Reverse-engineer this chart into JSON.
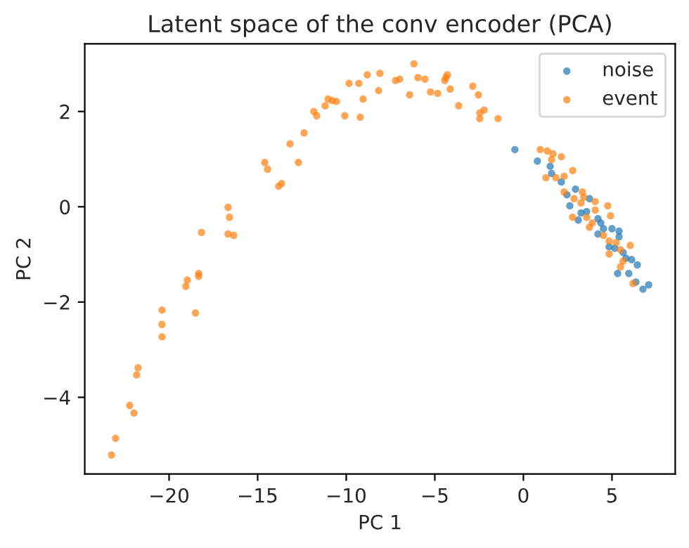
{
  "chart_data": {
    "type": "scatter",
    "title": "Latent space of the conv encoder (PCA)",
    "xlabel": "PC 1",
    "ylabel": "PC 2",
    "xlim": [
      -24.76,
      8.57
    ],
    "ylim": [
      -5.61,
      3.42
    ],
    "xticks": [
      {
        "value": -20,
        "label": "−20"
      },
      {
        "value": -15,
        "label": "−15"
      },
      {
        "value": -10,
        "label": "−10"
      },
      {
        "value": -5,
        "label": "−5"
      },
      0,
      5
    ],
    "yticks": [
      {
        "value": -4,
        "label": "−4"
      },
      {
        "value": -2,
        "label": "−2"
      },
      0,
      2
    ],
    "legend": "top right",
    "marker": "circle",
    "grid": false,
    "series": [
      {
        "name": "noise",
        "color": "#1f77b4",
        "x": [
          -0.48,
          0.79,
          1.51,
          1.59,
          2.14,
          2.94,
          2.62,
          3.1,
          3.73,
          3.25,
          3.57,
          4.21,
          4.21,
          4.52,
          5.0,
          5.4,
          5.4,
          4.84,
          5.79,
          6.11,
          6.43,
          5.32,
          5.95,
          6.35,
          6.75,
          7.07,
          3.97,
          2.46,
          4.37,
          5.16,
          5.63
        ],
        "values": [
          1.2,
          0.96,
          0.85,
          0.7,
          0.52,
          0.37,
          0.02,
          -0.28,
          0.17,
          -0.13,
          -0.1,
          -0.25,
          -0.57,
          -0.46,
          -0.46,
          -0.51,
          -0.63,
          -0.84,
          -1.08,
          -1.11,
          -1.22,
          -1.4,
          -1.4,
          -1.58,
          -1.73,
          -1.64,
          null,
          0.25,
          -0.34,
          -0.87,
          -0.96
        ]
      },
      {
        "name": "event",
        "color": "#ff7f0e",
        "x": [
          -18.17,
          -16.67,
          -16.35,
          -18.33,
          -18.33,
          -18.97,
          -19.05,
          -18.51,
          -20.4,
          -20.4,
          -20.4,
          -21.75,
          -21.83,
          -22.22,
          -21.98,
          -23.02,
          -23.25,
          -16.67,
          -16.59,
          -14.6,
          -14.44,
          -13.81,
          -13.65,
          -13.17,
          -12.7,
          -12.38,
          -11.83,
          -11.67,
          -11.19,
          -11.03,
          -10.79,
          -10.56,
          -10.08,
          -9.84,
          -9.29,
          -9.21,
          -9.05,
          -8.81,
          -8.17,
          -8.1,
          -7.22,
          -6.98,
          -6.42,
          -6.18,
          -5.95,
          -5.56,
          -5.24,
          -4.84,
          -4.44,
          -4.37,
          -4.29,
          -4.13,
          -3.65,
          -2.86,
          -2.54,
          -2.22,
          -2.46,
          -2.46,
          -1.43,
          0.95,
          1.35,
          1.67,
          1.59,
          2.14,
          1.27,
          1.83,
          2.3,
          2.78,
          2.3,
          2.86,
          3.33,
          3.41,
          3.25,
          4.05,
          4.76,
          2.78,
          3.57,
          3.89,
          4.92,
          4.52,
          4.84,
          5.24,
          6.03,
          5.48,
          4.84,
          5.63,
          5.48,
          6.19,
          4.05,
          3.73
        ],
        "values": [
          -0.54,
          -0.57,
          -0.6,
          -1.4,
          -1.46,
          -1.54,
          -1.67,
          -2.23,
          -2.17,
          -2.47,
          -2.73,
          -3.38,
          -3.53,
          -4.17,
          -4.33,
          -4.86,
          -5.21,
          -0.01,
          -0.22,
          0.93,
          0.79,
          0.43,
          0.49,
          1.32,
          0.93,
          1.55,
          2.0,
          1.91,
          2.12,
          2.26,
          2.23,
          2.21,
          1.91,
          2.59,
          2.59,
          1.88,
          2.26,
          2.77,
          2.44,
          2.8,
          2.65,
          2.68,
          2.35,
          3.0,
          2.71,
          2.68,
          2.41,
          2.38,
          2.65,
          2.71,
          2.77,
          2.47,
          2.12,
          2.53,
          2.35,
          2.03,
          1.97,
          1.85,
          1.85,
          1.2,
          1.17,
          1.11,
          0.99,
          1.05,
          0.61,
          0.61,
          0.64,
          0.76,
          0.31,
          0.17,
          0.31,
          0.2,
          0.08,
          0.11,
          0.02,
          -0.22,
          -0.22,
          -0.34,
          -0.19,
          -0.6,
          -0.72,
          -0.75,
          -0.81,
          -0.9,
          -0.99,
          -1.14,
          -1.26,
          -1.61,
          -0.07,
          -0.43
        ]
      }
    ]
  }
}
